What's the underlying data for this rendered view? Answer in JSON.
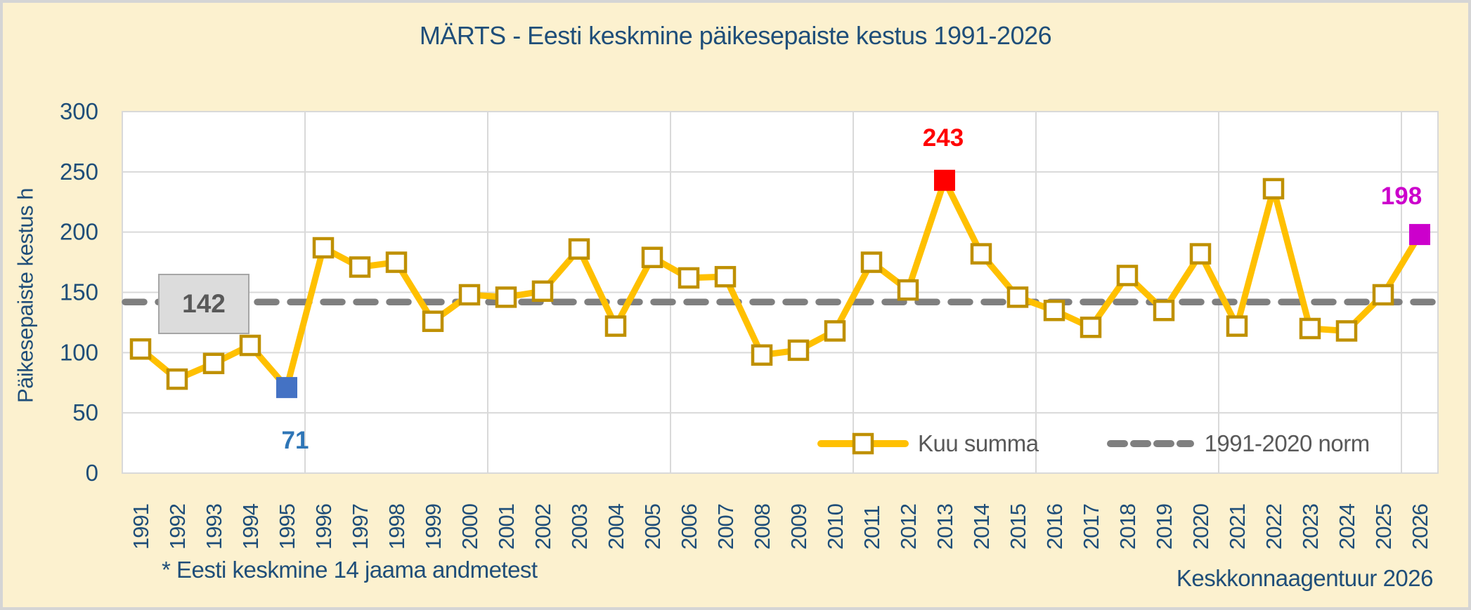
{
  "chart_data": {
    "type": "line",
    "title": "MÄRTS - Eesti keskmine päikesepaiste kestus 1991-2026",
    "ylabel": "Päikesepaiste kestus h",
    "ylim": [
      0,
      300
    ],
    "yticks": [
      0,
      50,
      100,
      150,
      200,
      250,
      300
    ],
    "x_major_gridline_every": 5,
    "grid": "on",
    "legend_position": "inside-bottom-right",
    "categories": [
      "1991",
      "1992",
      "1993",
      "1994",
      "1995",
      "1996",
      "1997",
      "1998",
      "1999",
      "2000",
      "2001",
      "2002",
      "2003",
      "2004",
      "2005",
      "2006",
      "2007",
      "2008",
      "2009",
      "2010",
      "2011",
      "2012",
      "2013",
      "2014",
      "2015",
      "2016",
      "2017",
      "2018",
      "2019",
      "2020",
      "2021",
      "2022",
      "2023",
      "2024",
      "2025",
      "2026"
    ],
    "series": [
      {
        "name": "Kuu summa",
        "type": "line-with-square-markers",
        "color": "#FFC000",
        "marker_edge_color": "#BF9000",
        "values": [
          103,
          78,
          91,
          106,
          71,
          187,
          171,
          175,
          126,
          148,
          146,
          151,
          186,
          122,
          179,
          162,
          163,
          98,
          102,
          118,
          175,
          152,
          243,
          182,
          146,
          135,
          121,
          164,
          135,
          182,
          122,
          236,
          120,
          118,
          148,
          198
        ]
      },
      {
        "name": "1991-2020 norm",
        "type": "dashed-constant-line",
        "value": 142,
        "color": "#7F7F7F"
      }
    ],
    "norm_label": "142",
    "special_points": [
      {
        "year": "1995",
        "value": 71,
        "label": "71",
        "marker_color": "#4472C4",
        "label_color": "#2E75B6"
      },
      {
        "year": "2013",
        "value": 243,
        "label": "243",
        "marker_color": "#FF0000",
        "label_color": "#FF0000"
      },
      {
        "year": "2026",
        "value": 198,
        "label": "198",
        "marker_color": "#CC00CC",
        "label_color": "#CC00CC"
      }
    ]
  },
  "footer": {
    "note": "* Eesti keskmine 14 jaama andmetest",
    "credit": "Keskkonnaagentuur 2026"
  },
  "colors": {
    "page_background": "#FCF1CF",
    "page_border": "#D5D5D5",
    "plot_background": "#FFFFFF",
    "gridline": "#D9D9D9",
    "axis_line": "#BFBFBF",
    "heading_text": "#1F4E79",
    "legend_text": "#595959",
    "norm_box_fill": "#DCDCDC",
    "norm_box_border": "#A6A6A6",
    "norm_box_text": "#595959"
  }
}
